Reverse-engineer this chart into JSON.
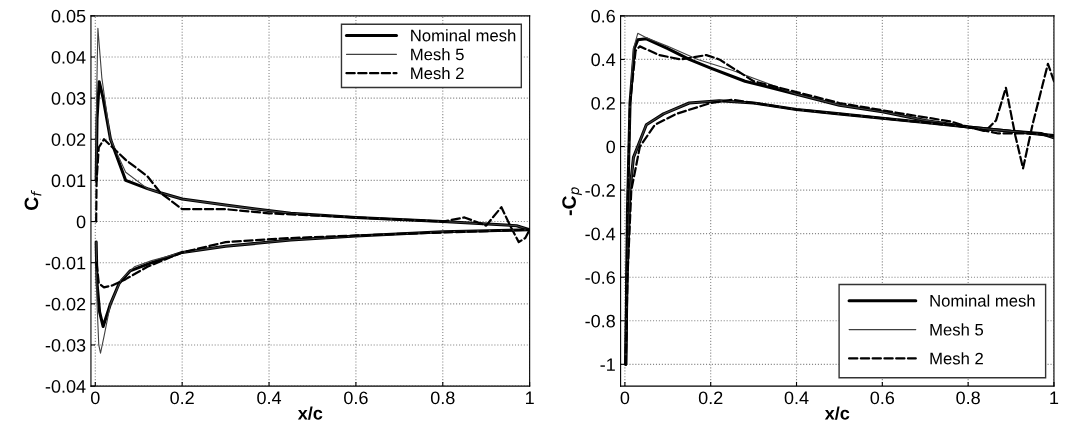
{
  "chart_data": [
    {
      "type": "line",
      "xlabel": "x/c",
      "ylabel": "C$_{f}$",
      "xlim": [
        -0.01,
        1
      ],
      "ylim": [
        -0.04,
        0.05
      ],
      "xticks": [
        0,
        0.2,
        0.4,
        0.6,
        0.8,
        1
      ],
      "yticks": [
        -0.04,
        -0.03,
        -0.02,
        -0.01,
        0,
        0.01,
        0.02,
        0.03,
        0.04,
        0.05
      ],
      "grid": true,
      "legend": "top right",
      "series": [
        {
          "name": "Nominal mesh",
          "color": "#000000",
          "line_style": "solid",
          "x": [
            0.002,
            0.004,
            0.009,
            0.018,
            0.035,
            0.07,
            0.12,
            0.15,
            0.2,
            0.3,
            0.45,
            0.6,
            0.8,
            0.97,
            1
          ],
          "values": [
            0.01,
            0.025,
            0.034,
            0.03,
            0.02,
            0.01,
            0.008,
            0.007,
            0.0055,
            0.004,
            0.002,
            0.001,
            0,
            -0.001,
            -0.002
          ]
        },
        {
          "name": "Mesh 5",
          "color": "#404040",
          "line_style": "solid",
          "x": [
            0.002,
            0.003,
            0.006,
            0.015,
            0.035,
            0.07,
            0.12,
            0.15,
            0.2,
            0.3,
            0.45,
            0.6,
            0.8,
            0.97,
            1
          ],
          "values": [
            0.01,
            0.03,
            0.047,
            0.035,
            0.02,
            0.012,
            0.008,
            0.007,
            0.0055,
            0.004,
            0.002,
            0.001,
            0,
            -0.001,
            -0.002
          ]
        },
        {
          "name": "Mesh 2",
          "color": "#000000",
          "line_style": "dashed",
          "x": [
            0.002,
            0.003,
            0.008,
            0.02,
            0.04,
            0.07,
            0.12,
            0.15,
            0.2,
            0.3,
            0.4,
            0.6,
            0.8,
            0.85,
            0.875,
            0.9,
            0.915,
            0.935,
            0.955,
            0.975,
            0.99,
            1
          ],
          "values": [
            0,
            0.01,
            0.018,
            0.02,
            0.018,
            0.015,
            0.011,
            0.007,
            0.003,
            0.003,
            0.002,
            0.001,
            0,
            0.001,
            0,
            -0.001,
            0.001,
            0.0035,
            -0.001,
            -0.005,
            -0.004,
            -0.002
          ]
        },
        {
          "color": "#000000",
          "line_style": "solid",
          "x": [
            0.002,
            0.004,
            0.01,
            0.018,
            0.035,
            0.055,
            0.08,
            0.13,
            0.2,
            0.3,
            0.45,
            0.6,
            0.8,
            1
          ],
          "values": [
            -0.005,
            -0.015,
            -0.022,
            -0.0255,
            -0.02,
            -0.015,
            -0.012,
            -0.01,
            -0.0075,
            -0.006,
            -0.0045,
            -0.0035,
            -0.0025,
            -0.002
          ]
        },
        {
          "color": "#404040",
          "line_style": "solid",
          "x": [
            0.002,
            0.004,
            0.008,
            0.012,
            0.02,
            0.035,
            0.06,
            0.09,
            0.13,
            0.2,
            0.3,
            0.45,
            0.6,
            0.8,
            1
          ],
          "values": [
            -0.005,
            -0.02,
            -0.03,
            -0.032,
            -0.028,
            -0.02,
            -0.014,
            -0.011,
            -0.0095,
            -0.0075,
            -0.006,
            -0.0045,
            -0.0035,
            -0.0025,
            -0.002
          ]
        },
        {
          "color": "#000000",
          "line_style": "dashed",
          "x": [
            0.003,
            0.008,
            0.02,
            0.04,
            0.07,
            0.12,
            0.2,
            0.3,
            0.45,
            0.7,
            1
          ],
          "values": [
            -0.01,
            -0.015,
            -0.016,
            -0.0155,
            -0.014,
            -0.011,
            -0.0075,
            -0.005,
            -0.004,
            -0.003,
            -0.002
          ]
        }
      ]
    },
    {
      "type": "line",
      "xlabel": "x/c",
      "ylabel": "-C$_{p}$",
      "xlim": [
        -0.01,
        1
      ],
      "ylim": [
        -1.1,
        0.6
      ],
      "xticks": [
        0,
        0.2,
        0.4,
        0.6,
        0.8,
        1
      ],
      "yticks": [
        -1,
        -0.8,
        -0.6,
        -0.4,
        -0.2,
        0,
        0.2,
        0.4,
        0.6
      ],
      "grid": true,
      "legend": "bottom right",
      "series": [
        {
          "name": "Nominal mesh",
          "color": "#000000",
          "line_style": "solid",
          "x": [
            0.002,
            0.006,
            0.012,
            0.022,
            0.03,
            0.05,
            0.1,
            0.15,
            0.2,
            0.28,
            0.4,
            0.5,
            0.6,
            0.7,
            0.8,
            0.9,
            0.97,
            1
          ],
          "values": [
            -1,
            -0.3,
            0.2,
            0.45,
            0.49,
            0.495,
            0.45,
            0.4,
            0.36,
            0.3,
            0.24,
            0.19,
            0.16,
            0.12,
            0.09,
            0.07,
            0.06,
            0.04
          ]
        },
        {
          "name": "Mesh 5",
          "color": "#404040",
          "line_style": "solid",
          "x": [
            0.002,
            0.006,
            0.012,
            0.02,
            0.03,
            0.05,
            0.1,
            0.17,
            0.25,
            0.4,
            0.5,
            0.6,
            0.7,
            0.8,
            0.9,
            0.97,
            1
          ],
          "values": [
            -1,
            -0.3,
            0.2,
            0.45,
            0.52,
            0.5,
            0.46,
            0.4,
            0.35,
            0.24,
            0.19,
            0.16,
            0.12,
            0.09,
            0.07,
            0.06,
            0.04
          ]
        },
        {
          "name": "Mesh 2",
          "color": "#000000",
          "line_style": "dashed",
          "x": [
            0.002,
            0.006,
            0.012,
            0.025,
            0.035,
            0.08,
            0.13,
            0.19,
            0.22,
            0.3,
            0.4,
            0.5,
            0.65,
            0.76,
            0.8,
            0.84,
            0.865,
            0.888,
            0.91,
            0.928,
            0.95,
            0.986,
            1
          ],
          "values": [
            -1,
            -0.3,
            0.2,
            0.44,
            0.46,
            0.42,
            0.4,
            0.42,
            0.4,
            0.3,
            0.25,
            0.2,
            0.15,
            0.115,
            0.09,
            0.07,
            0.12,
            0.27,
            0.05,
            -0.1,
            0.1,
            0.38,
            0.3
          ]
        },
        {
          "color": "#000000",
          "line_style": "solid",
          "x": [
            0.002,
            0.005,
            0.012,
            0.02,
            0.03,
            0.05,
            0.09,
            0.15,
            0.22,
            0.3,
            0.4,
            0.5,
            0.6,
            0.7,
            0.8,
            0.9,
            0.95,
            1
          ],
          "values": [
            -1,
            -0.6,
            -0.2,
            -0.05,
            0,
            0.1,
            0.15,
            0.2,
            0.21,
            0.2,
            0.17,
            0.15,
            0.13,
            0.11,
            0.09,
            0.07,
            0.06,
            0.05
          ]
        },
        {
          "color": "#404040",
          "line_style": "solid",
          "x": [
            0.002,
            0.005,
            0.012,
            0.02,
            0.03,
            0.05,
            0.09,
            0.15,
            0.22,
            0.3,
            0.4,
            0.5,
            0.6,
            0.7,
            0.8,
            0.9,
            0.95,
            1
          ],
          "values": [
            -1,
            -0.6,
            -0.2,
            -0.05,
            0,
            0.1,
            0.15,
            0.2,
            0.21,
            0.2,
            0.17,
            0.15,
            0.13,
            0.11,
            0.09,
            0.07,
            0.06,
            0.05
          ]
        },
        {
          "color": "#000000",
          "line_style": "dashed",
          "x": [
            0.002,
            0.006,
            0.015,
            0.035,
            0.07,
            0.12,
            0.2,
            0.25,
            0.3,
            0.4,
            0.5,
            0.65,
            0.8,
            0.87,
            0.95,
            1
          ],
          "values": [
            -1,
            -0.6,
            -0.2,
            0,
            0.1,
            0.15,
            0.2,
            0.215,
            0.2,
            0.17,
            0.15,
            0.12,
            0.09,
            0.06,
            0.06,
            0.05
          ]
        }
      ]
    }
  ]
}
